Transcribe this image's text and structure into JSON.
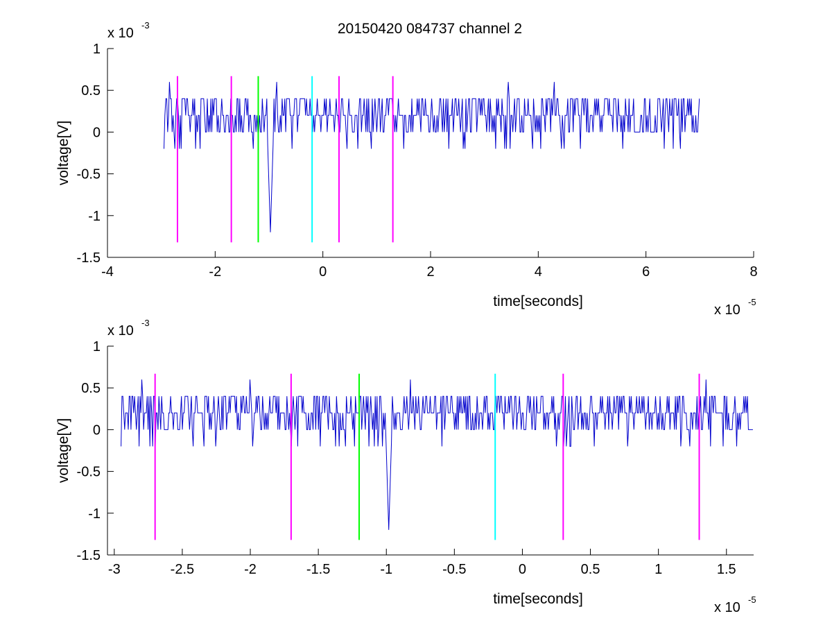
{
  "figure": {
    "title": "20150420 084737 channel 2"
  },
  "chart_data": [
    {
      "type": "line",
      "title": "20150420 084737 channel 2",
      "xlabel": "time[seconds]",
      "ylabel": "voltage[V]",
      "x_exponent_label": "x 10",
      "x_exponent": "-5",
      "y_exponent_label": "x 10",
      "y_exponent": "-3",
      "xlim": [
        -4,
        8
      ],
      "ylim": [
        -1.5,
        1
      ],
      "xticks": [
        -4,
        -2,
        0,
        2,
        4,
        6,
        8
      ],
      "xtick_labels": [
        "-4",
        "-2",
        "0",
        "2",
        "4",
        "6",
        "8"
      ],
      "yticks": [
        -1.5,
        -1,
        -0.5,
        0,
        0.5,
        1
      ],
      "ytick_labels": [
        "-1.5",
        "-1",
        "-0.5",
        "0",
        "0.5",
        "1"
      ],
      "grid": false,
      "signal": {
        "color": "#0000cc",
        "x_range": [
          -2.95,
          7.0
        ],
        "baseline_level": 0.2,
        "noise_levels": [
          0.4,
          0.2,
          0.0,
          -0.2
        ],
        "dips": [
          {
            "x": -1.3,
            "y": -0.2
          },
          {
            "x": -0.98,
            "y": -1.2
          }
        ],
        "spikes": [
          {
            "x": -2.85,
            "y": 0.6
          },
          {
            "x": -0.85,
            "y": 0.6
          },
          {
            "x": 3.45,
            "y": 0.6
          },
          {
            "x": 4.3,
            "y": 0.6
          }
        ]
      },
      "markers": [
        {
          "x": -2.7,
          "y_top": 0.67,
          "y_bottom": -1.32,
          "color": "#ff00ff"
        },
        {
          "x": -1.7,
          "y_top": 0.67,
          "y_bottom": -1.32,
          "color": "#ff00ff"
        },
        {
          "x": -1.2,
          "y_top": 0.67,
          "y_bottom": -1.32,
          "color": "#00ff00"
        },
        {
          "x": -0.2,
          "y_top": 0.67,
          "y_bottom": -1.32,
          "color": "#00ffff"
        },
        {
          "x": 0.3,
          "y_top": 0.67,
          "y_bottom": -1.32,
          "color": "#ff00ff"
        },
        {
          "x": 1.3,
          "y_top": 0.67,
          "y_bottom": -1.32,
          "color": "#ff00ff"
        }
      ]
    },
    {
      "type": "line",
      "title": "",
      "xlabel": "time[seconds]",
      "ylabel": "voltage[V]",
      "x_exponent_label": "x 10",
      "x_exponent": "-5",
      "y_exponent_label": "x 10",
      "y_exponent": "-3",
      "xlim": [
        -3.05,
        1.7
      ],
      "ylim": [
        -1.5,
        1
      ],
      "xticks": [
        -3,
        -2.5,
        -2,
        -1.5,
        -1,
        -0.5,
        0,
        0.5,
        1,
        1.5
      ],
      "xtick_labels": [
        "-3",
        "-2.5",
        "-2",
        "-1.5",
        "-1",
        "-0.5",
        "0",
        "0.5",
        "1",
        "1.5"
      ],
      "yticks": [
        -1.5,
        -1,
        -0.5,
        0,
        0.5,
        1
      ],
      "ytick_labels": [
        "-1.5",
        "-1",
        "-0.5",
        "0",
        "0.5",
        "1"
      ],
      "grid": false,
      "signal": {
        "color": "#0000cc",
        "x_range": [
          -2.95,
          1.7
        ],
        "baseline_level": 0.2,
        "noise_levels": [
          0.4,
          0.2,
          0.0,
          -0.2
        ],
        "dips": [
          {
            "x": -2.7,
            "y": -0.2
          },
          {
            "x": -1.3,
            "y": -0.2
          },
          {
            "x": -0.98,
            "y": -1.2
          }
        ],
        "spikes": [
          {
            "x": -2.8,
            "y": 0.6
          },
          {
            "x": -2.0,
            "y": 0.6
          },
          {
            "x": -0.82,
            "y": 0.6
          },
          {
            "x": 1.35,
            "y": 0.6
          }
        ]
      },
      "markers": [
        {
          "x": -2.7,
          "y_top": 0.67,
          "y_bottom": -1.32,
          "color": "#ff00ff"
        },
        {
          "x": -1.7,
          "y_top": 0.67,
          "y_bottom": -1.32,
          "color": "#ff00ff"
        },
        {
          "x": -1.2,
          "y_top": 0.67,
          "y_bottom": -1.32,
          "color": "#00ff00"
        },
        {
          "x": -0.2,
          "y_top": 0.67,
          "y_bottom": -1.32,
          "color": "#00ffff"
        },
        {
          "x": 0.3,
          "y_top": 0.67,
          "y_bottom": -1.32,
          "color": "#ff00ff"
        },
        {
          "x": 1.3,
          "y_top": 0.67,
          "y_bottom": -1.32,
          "color": "#ff00ff"
        }
      ]
    }
  ]
}
